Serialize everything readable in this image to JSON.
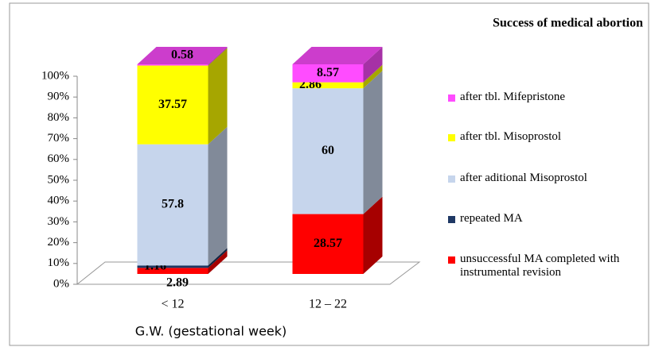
{
  "chart_data": {
    "type": "bar3d_stacked",
    "title": "Success of medical abortion",
    "x_label": "G.W. (gestational week)",
    "categories": [
      "< 12",
      "12 – 22"
    ],
    "series": [
      {
        "name": "unsuccessful MA completed with instrumental revision",
        "color": "#ff0000",
        "values": [
          2.89,
          28.57
        ]
      },
      {
        "name": "repeated MA",
        "color": "#1f3864",
        "values": [
          1.16,
          0
        ]
      },
      {
        "name": "after aditional Misoprostol",
        "color": "#c6d5ec",
        "values": [
          57.8,
          60
        ]
      },
      {
        "name": "after tbl. Misoprostol",
        "color": "#ffff00",
        "values": [
          37.57,
          2.86
        ]
      },
      {
        "name": "after tbl. Mifepristone",
        "color": "#ff4cff",
        "values": [
          0.58,
          8.57
        ]
      }
    ],
    "ylim": [
      0,
      100
    ],
    "yticks": [
      {
        "value": 0,
        "label": "0%"
      },
      {
        "value": 10,
        "label": "10%"
      },
      {
        "value": 20,
        "label": "20%"
      },
      {
        "value": 30,
        "label": "30%"
      },
      {
        "value": 40,
        "label": "40%"
      },
      {
        "value": 50,
        "label": "50%"
      },
      {
        "value": 60,
        "label": "60%"
      },
      {
        "value": 70,
        "label": "70%"
      },
      {
        "value": 80,
        "label": "80%"
      },
      {
        "value": 90,
        "label": "90%"
      },
      {
        "value": 100,
        "label": "100%"
      }
    ]
  }
}
